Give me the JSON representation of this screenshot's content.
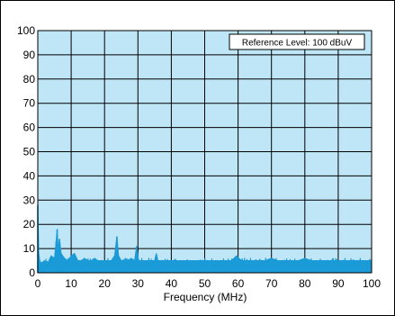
{
  "chart_data": {
    "type": "line",
    "title": "",
    "xlabel": "Frequency (MHz)",
    "ylabel": "",
    "xlim": [
      0,
      100
    ],
    "ylim": [
      0,
      100
    ],
    "x_ticks": [
      "0",
      "10",
      "20",
      "30",
      "40",
      "50",
      "60",
      "70",
      "80",
      "90",
      "100"
    ],
    "y_ticks": [
      "0",
      "10",
      "20",
      "30",
      "40",
      "50",
      "60",
      "70",
      "80",
      "90",
      "100"
    ],
    "grid": true,
    "plot_background": "#bfe6f6",
    "series_color": "#1a9ad6",
    "annotation": "Reference Level: 100 dBuV",
    "series": [
      {
        "noise_floor": 4.5,
        "x": [
          0,
          0.3,
          0.6,
          1,
          2,
          3,
          4,
          5,
          5.5,
          5.8,
          6.1,
          6.5,
          7,
          8,
          9,
          10,
          11,
          12,
          13,
          14,
          15,
          16,
          17,
          18,
          19,
          20,
          21,
          22,
          23,
          23.7,
          24.2,
          25,
          26,
          27,
          28,
          29,
          29.6,
          30.2,
          31,
          32,
          33,
          34,
          35,
          35.5,
          36,
          38,
          40,
          42,
          44,
          46,
          48,
          50,
          52,
          54,
          56,
          58,
          59.5,
          61,
          62,
          64,
          66,
          68,
          70,
          72,
          74,
          76,
          78,
          80,
          82,
          84,
          86,
          88,
          90,
          92,
          94,
          96,
          98,
          100
        ],
        "y": [
          28,
          8,
          5,
          4,
          5,
          4,
          7,
          6,
          13,
          18,
          10,
          14,
          8,
          6,
          5,
          7,
          8,
          5,
          5,
          6,
          5,
          5,
          6,
          5,
          5,
          5,
          5,
          5,
          7,
          15,
          7,
          5,
          5,
          5,
          6,
          5,
          11,
          5,
          5,
          5,
          5,
          5,
          5,
          8,
          5,
          5,
          5,
          5,
          5,
          5,
          5,
          5,
          5,
          5,
          5,
          5,
          7,
          5,
          5,
          5,
          5,
          5,
          6,
          5,
          5,
          5,
          5,
          6,
          5,
          5,
          5,
          5,
          5,
          5,
          5,
          5,
          5,
          5
        ]
      }
    ]
  }
}
